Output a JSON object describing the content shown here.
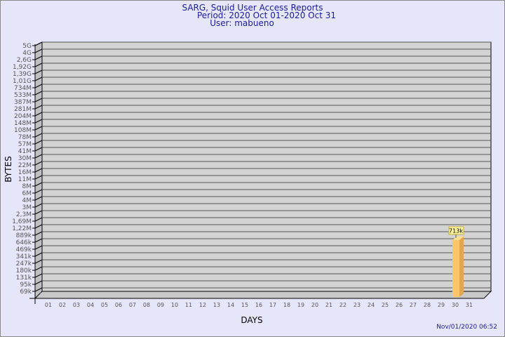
{
  "chart_data": {
    "type": "bar",
    "title": "SARG, Squid User Access Reports",
    "subtitle": [
      "Period: 2020 Oct 01-2020 Oct 31",
      "User: mabueno"
    ],
    "xlabel": "DAYS",
    "ylabel": "BYTES",
    "y_scale": "log",
    "y_ticks": [
      "5G",
      "4G",
      "2,6G",
      "1,92G",
      "1,39G",
      "1,01G",
      "734M",
      "533M",
      "387M",
      "281M",
      "204M",
      "148M",
      "108M",
      "78M",
      "57M",
      "41M",
      "30M",
      "22M",
      "16M",
      "11M",
      "8M",
      "6M",
      "4M",
      "3M",
      "2,3M",
      "1,69M",
      "1,22M",
      "889k",
      "646k",
      "469k",
      "341k",
      "247k",
      "180k",
      "131k",
      "95k",
      "69k"
    ],
    "categories": [
      "01",
      "02",
      "03",
      "04",
      "05",
      "06",
      "07",
      "08",
      "09",
      "10",
      "11",
      "12",
      "13",
      "14",
      "15",
      "16",
      "17",
      "18",
      "19",
      "20",
      "21",
      "22",
      "23",
      "24",
      "25",
      "26",
      "27",
      "28",
      "29",
      "30",
      "31"
    ],
    "values": [
      {
        "day": "30",
        "label": "713k"
      }
    ],
    "grid": true,
    "colors": {
      "bar": "#ffc56a",
      "bar_side": "#e0a650",
      "wall": "#d3d3d3",
      "title": "#1a1aa0"
    }
  },
  "footer": {
    "timestamp": "Nov/01/2020 06:52"
  }
}
